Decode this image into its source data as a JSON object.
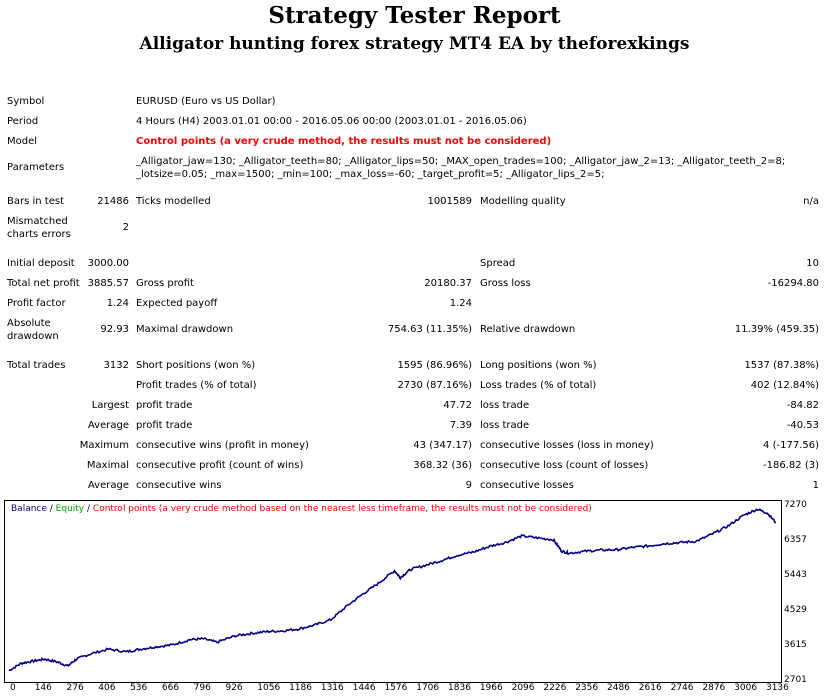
{
  "report": {
    "title": "Strategy Tester Report",
    "subtitle": "Alligator hunting forex strategy MT4 EA by theforexkings"
  },
  "info": {
    "symbol_label": "Symbol",
    "symbol_value": "EURUSD (Euro vs US Dollar)",
    "period_label": "Period",
    "period_value": "4 Hours (H4) 2003.01.01 00:00 - 2016.05.06 00:00 (2003.01.01 - 2016.05.06)",
    "model_label": "Model",
    "model_value": "Control points (a very crude method, the results must not be considered)",
    "parameters_label": "Parameters",
    "parameters_line1": "_Alligator_jaw=130; _Alligator_teeth=80; _Alligator_lips=50; _MAX_open_trades=100; _Alligator_jaw_2=13; _Alligator_teeth_2=8;",
    "parameters_line2": "_lotsize=0.05; _max=1500; _min=100; _max_loss=-60; _target_profit=5; _Alligator_lips_2=5;"
  },
  "stats": {
    "bars_label": "Bars in test",
    "bars_value": "21486",
    "ticks_label": "Ticks modelled",
    "ticks_value": "1001589",
    "quality_label": "Modelling quality",
    "quality_value": "n/a",
    "mismatch_label_1": "Mismatched",
    "mismatch_label_2": "charts errors",
    "mismatch_value": "2",
    "initial_deposit_label": "Initial deposit",
    "initial_deposit_value": "3000.00",
    "spread_label": "Spread",
    "spread_value": "10",
    "net_profit_label": "Total net profit",
    "net_profit_value": "3885.57",
    "gross_profit_label": "Gross profit",
    "gross_profit_value": "20180.37",
    "gross_loss_label": "Gross loss",
    "gross_loss_value": "-16294.80",
    "profit_factor_label": "Profit factor",
    "profit_factor_value": "1.24",
    "expected_payoff_label": "Expected payoff",
    "expected_payoff_value": "1.24",
    "absolute_label_1": "Absolute",
    "absolute_label_2": "drawdown",
    "absolute_value": "92.93",
    "maximal_dd_label": "Maximal drawdown",
    "maximal_dd_value": "754.63 (11.35%)",
    "relative_dd_label": "Relative drawdown",
    "relative_dd_value": "11.39% (459.35)",
    "total_trades_label": "Total trades",
    "total_trades_value": "3132",
    "short_label": "Short positions (won %)",
    "short_value": "1595 (86.96%)",
    "long_label": "Long positions (won %)",
    "long_value": "1537 (87.38%)",
    "profit_trades_label": "Profit trades (% of total)",
    "profit_trades_value": "2730 (87.16%)",
    "loss_trades_label": "Loss trades (% of total)",
    "loss_trades_value": "402 (12.84%)",
    "largest_label": "Largest",
    "largest_profit_label": "profit trade",
    "largest_profit_value": "47.72",
    "largest_loss_label": "loss trade",
    "largest_loss_value": "-84.82",
    "average_label": "Average",
    "average_profit_label": "profit trade",
    "average_profit_value": "7.39",
    "average_loss_label": "loss trade",
    "average_loss_value": "-40.53",
    "maximum_label": "Maximum",
    "max_wins_label": "consecutive wins (profit in money)",
    "max_wins_value": "43 (347.17)",
    "max_losses_label": "consecutive losses (loss in money)",
    "max_losses_value": "4 (-177.56)",
    "maximal_label": "Maximal",
    "maximal_profit_label": "consecutive profit (count of wins)",
    "maximal_profit_value": "368.32 (36)",
    "maximal_loss_label": "consecutive loss (count of losses)",
    "maximal_loss_value": "-186.82 (3)",
    "average2_label": "Average",
    "avg_wins_label": "consecutive wins",
    "avg_wins_value": "9",
    "avg_losses_label": "consecutive losses",
    "avg_losses_value": "1"
  },
  "legend": {
    "balance": "Balance",
    "sep1": " / ",
    "equity": "Equity",
    "sep2": " / ",
    "control": "Control points (a very crude method based on the nearest less timeframe, the results must not be considered)",
    "balance_color": "#000080",
    "equity_color": "#00a000",
    "control_color": "#ff0000"
  },
  "chart_data": {
    "type": "line",
    "title": "",
    "xlabel": "",
    "ylabel": "",
    "xlim": [
      0,
      3132
    ],
    "ylim": [
      2701,
      7434
    ],
    "x_ticks": [
      0,
      146,
      276,
      406,
      536,
      666,
      796,
      926,
      1056,
      1186,
      1316,
      1446,
      1576,
      1706,
      1836,
      1966,
      2096,
      2226,
      2356,
      2486,
      2616,
      2746,
      2876,
      3006,
      3136
    ],
    "y_ticks": [
      2701,
      3615,
      4529,
      5443,
      6357,
      7270
    ],
    "grid": false,
    "legend_position": "top-left",
    "series": [
      {
        "name": "Balance",
        "color": "#000080",
        "x": [
          0,
          50,
          100,
          146,
          200,
          240,
          276,
          330,
          406,
          480,
          536,
          600,
          666,
          740,
          796,
          850,
          926,
          990,
          1056,
          1120,
          1186,
          1250,
          1316,
          1380,
          1446,
          1510,
          1576,
          1600,
          1640,
          1706,
          1770,
          1836,
          1900,
          1966,
          2030,
          2096,
          2160,
          2226,
          2260,
          2290,
          2356,
          2420,
          2486,
          2550,
          2616,
          2680,
          2746,
          2810,
          2876,
          2940,
          3006,
          3060,
          3100,
          3136
        ],
        "y": [
          3000,
          3190,
          3250,
          3300,
          3220,
          3120,
          3300,
          3430,
          3560,
          3490,
          3560,
          3620,
          3670,
          3810,
          3830,
          3740,
          3910,
          3970,
          4020,
          4040,
          4090,
          4190,
          4330,
          4680,
          5000,
          5280,
          5610,
          5430,
          5640,
          5760,
          5880,
          6020,
          6100,
          6250,
          6350,
          6520,
          6470,
          6420,
          6120,
          6070,
          6120,
          6150,
          6160,
          6220,
          6260,
          6320,
          6350,
          6380,
          6570,
          6780,
          7070,
          7220,
          7120,
          6870
        ]
      }
    ]
  }
}
